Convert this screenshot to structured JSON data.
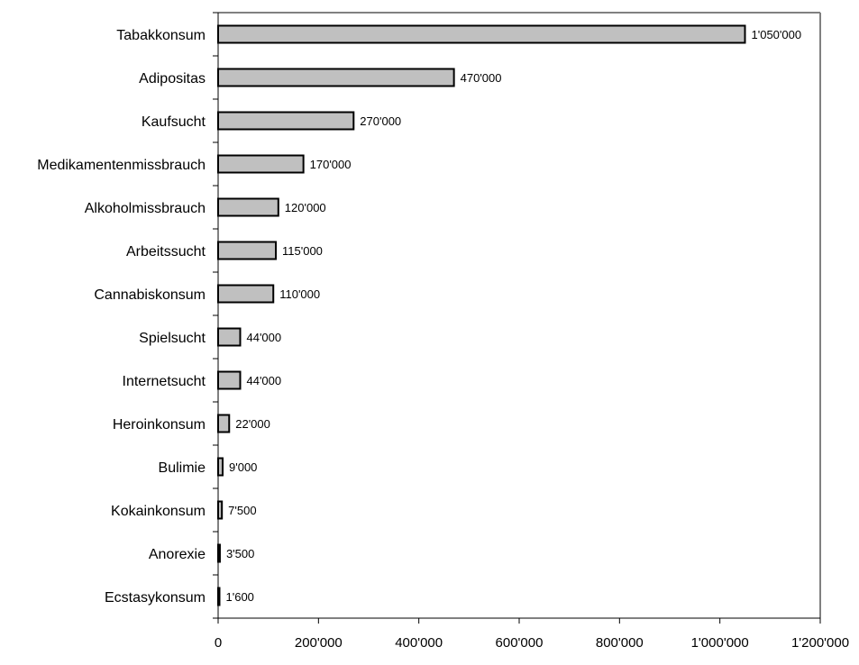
{
  "colors": {
    "bar_fill": "#c0c0c0",
    "bar_stroke": "#000000",
    "plot_border": "#808080",
    "axis": "#000000"
  },
  "chart_data": {
    "type": "bar",
    "orientation": "horizontal",
    "title": "",
    "xlabel": "",
    "ylabel": "",
    "xlim": [
      0,
      1200000
    ],
    "grid": false,
    "legend": "none",
    "categories": [
      "Tabakkonsum",
      "Adipositas",
      "Kaufsucht",
      "Medikamentenmissbrauch",
      "Alkoholmissbrauch",
      "Arbeitssucht",
      "Cannabiskonsum",
      "Spielsucht",
      "Internetsucht",
      "Heroinkonsum",
      "Bulimie",
      "Kokainkonsum",
      "Anorexie",
      "Ecstasykonsum"
    ],
    "values": [
      1050000,
      470000,
      270000,
      170000,
      120000,
      115000,
      110000,
      44000,
      44000,
      22000,
      9000,
      7500,
      3500,
      1600
    ],
    "value_labels": [
      "1'050'000",
      "470'000",
      "270'000",
      "170'000",
      "120'000",
      "115'000",
      "110'000",
      "44'000",
      "44'000",
      "22'000",
      "9'000",
      "7'500",
      "3'500",
      "1'600"
    ],
    "x_ticks": [
      0,
      200000,
      400000,
      600000,
      800000,
      1000000,
      1200000
    ],
    "x_tick_labels": [
      "0",
      "200'000",
      "400'000",
      "600'000",
      "800'000",
      "1'000'000",
      "1'200'000"
    ]
  }
}
